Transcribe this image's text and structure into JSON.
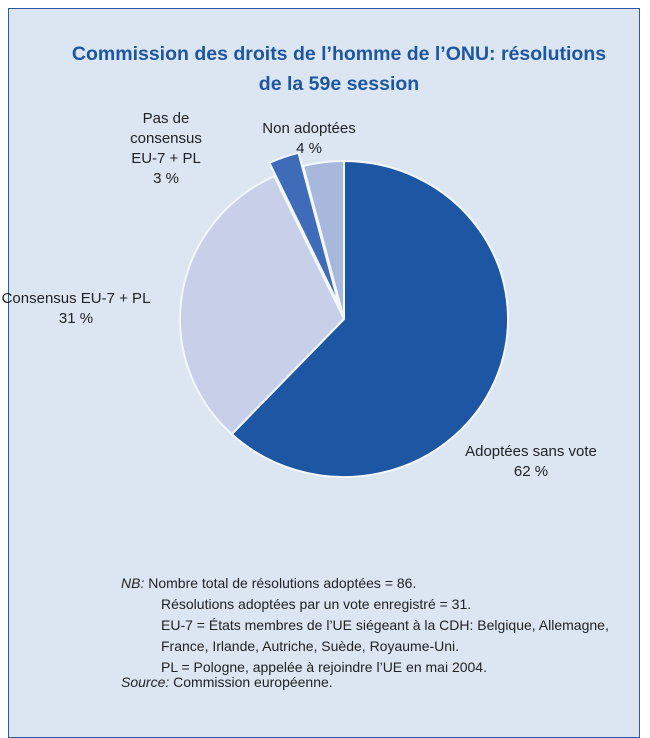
{
  "chart_data": {
    "type": "pie",
    "title": "Commission des droits de l’homme de l’ONU: résolutions de la 59e session",
    "categories": [
      "Adoptées sans vote",
      "Consensus EU-7 + PL",
      "Pas de consensus EU-7 + PL",
      "Non adoptées"
    ],
    "values": [
      62,
      31,
      3,
      4
    ],
    "value_labels": [
      "62 %",
      "31 %",
      "3 %",
      "4 %"
    ],
    "colors": [
      "#1d56a3",
      "#c7d0e8",
      "#3f6cb9",
      "#a8b8dd"
    ],
    "nb_label": "NB:",
    "notes": [
      "Nombre total de résolutions adoptées = 86.",
      "Résolutions adoptées par un vote enregistré = 31.",
      "EU-7 = États membres de l’UE siégeant à la CDH: Belgique, Allemagne, France, Irlande, Autriche, Suède, Royaume-Uni.",
      "PL = Pologne, appelée à rejoindre l’UE en mai 2004."
    ],
    "source_label": "Source:",
    "source": "Commission européenne."
  }
}
